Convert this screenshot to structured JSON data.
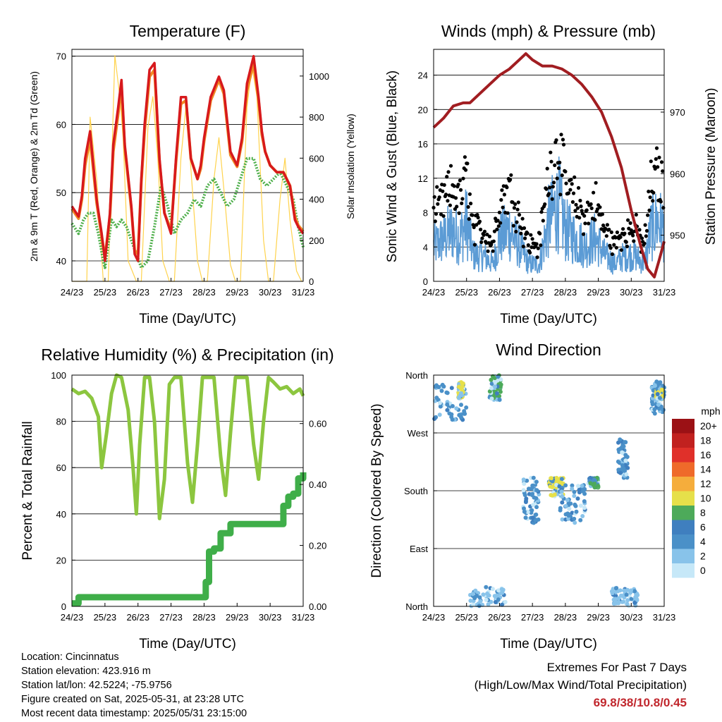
{
  "chart_data": [
    {
      "type": "line",
      "title": "Temperature (F)",
      "xlabel": "Time (Day/UTC)",
      "ylabel": "2m & 9m T (Red, Orange) & 2m Td (Green)",
      "ylabel_right": "Solar Insolation (Yellow)",
      "xticks": [
        "24/23",
        "25/23",
        "26/23",
        "27/23",
        "28/23",
        "29/23",
        "30/23",
        "31/23"
      ],
      "ylim": [
        37,
        71
      ],
      "yticks": [
        40,
        50,
        60,
        70
      ],
      "y2lim": [
        0,
        1130
      ],
      "y2ticks": [
        0,
        200,
        400,
        600,
        800,
        1000
      ],
      "grid": true,
      "colors": {
        "temp2m": "#d7191c",
        "temp9m": "#f08a24",
        "dewpoint": "#4daf4a",
        "solar": "#ffd34d"
      },
      "series": [
        {
          "key": "temp2m",
          "x": [
            0,
            0.2,
            0.3,
            0.4,
            0.55,
            0.75,
            0.9,
            1.0,
            1.15,
            1.25,
            1.4,
            1.5,
            1.6,
            1.8,
            1.9,
            2.0,
            2.1,
            2.2,
            2.35,
            2.5,
            2.65,
            2.8,
            3.0,
            3.15,
            3.3,
            3.45,
            3.6,
            3.8,
            3.9,
            4.0,
            4.2,
            4.45,
            4.6,
            4.8,
            5.0,
            5.15,
            5.3,
            5.5,
            5.65,
            5.75,
            5.85,
            6.0,
            6.2,
            6.4,
            6.6,
            6.75,
            6.85,
            6.92,
            7.0
          ],
          "y": [
            48,
            46.5,
            49.5,
            55,
            59,
            49,
            44,
            40,
            47,
            57,
            62.5,
            66.5,
            57,
            48,
            41,
            40,
            52,
            60,
            68,
            69,
            55,
            47,
            44,
            55,
            64,
            64,
            55,
            52,
            54,
            58,
            64,
            67,
            65,
            56,
            54,
            58,
            66,
            70,
            64,
            59,
            56,
            54,
            53,
            53,
            51,
            46,
            45,
            44.5,
            44
          ]
        },
        {
          "key": "temp9m",
          "x": [
            0,
            0.2,
            0.3,
            0.4,
            0.55,
            0.75,
            0.9,
            1.0,
            1.15,
            1.25,
            1.4,
            1.5,
            1.6,
            1.8,
            1.9,
            2.0,
            2.1,
            2.2,
            2.35,
            2.5,
            2.65,
            2.8,
            3.0,
            3.15,
            3.3,
            3.45,
            3.6,
            3.8,
            3.9,
            4.0,
            4.2,
            4.45,
            4.6,
            4.8,
            5.0,
            5.15,
            5.3,
            5.5,
            5.65,
            5.75,
            5.85,
            6.0,
            6.2,
            6.4,
            6.6,
            6.75,
            6.85,
            6.92,
            7.0
          ],
          "y": [
            47.6,
            46.2,
            49,
            54,
            58,
            48.5,
            43.6,
            40.5,
            46.5,
            56,
            61.5,
            65.5,
            56.5,
            47.6,
            41.5,
            41,
            51.5,
            59,
            67,
            68,
            54.5,
            47,
            44.5,
            54.5,
            63,
            63.5,
            55,
            52,
            53.5,
            57.5,
            63.5,
            66.5,
            64.5,
            55.5,
            53.8,
            57.5,
            65,
            69,
            63.5,
            58.5,
            56,
            54,
            53,
            53,
            51,
            46.5,
            45.2,
            44.8,
            44.3
          ]
        },
        {
          "key": "dewpoint",
          "x": [
            0,
            0.2,
            0.35,
            0.5,
            0.65,
            0.8,
            0.95,
            1.0,
            1.2,
            1.35,
            1.5,
            1.65,
            1.8,
            1.95,
            2.1,
            2.3,
            2.5,
            2.7,
            2.9,
            3.1,
            3.3,
            3.5,
            3.7,
            3.9,
            4.1,
            4.3,
            4.5,
            4.7,
            4.9,
            5.1,
            5.3,
            5.5,
            5.7,
            5.9,
            6.1,
            6.3,
            6.5,
            6.7,
            6.85,
            7.0
          ],
          "y": [
            45.5,
            44,
            46,
            47,
            47,
            44,
            40,
            39,
            46,
            45,
            46,
            45,
            43,
            41,
            39,
            40,
            45,
            51,
            48,
            44,
            46,
            47,
            49,
            48,
            51,
            52,
            50,
            48,
            49,
            52,
            55,
            55,
            52,
            51,
            52,
            53,
            51,
            49,
            45,
            42
          ]
        },
        {
          "key": "solar",
          "x": [
            0,
            0.45,
            0.55,
            0.75,
            0.95,
            1.1,
            1.3,
            1.45,
            1.55,
            1.7,
            1.95,
            2.1,
            2.3,
            2.45,
            2.6,
            2.75,
            2.95,
            3.1,
            3.3,
            3.45,
            3.6,
            3.8,
            3.95,
            4.1,
            4.3,
            4.45,
            4.6,
            4.8,
            4.95,
            5.1,
            5.3,
            5.45,
            5.6,
            5.8,
            5.95,
            6.1,
            6.3,
            6.45,
            6.6,
            6.8,
            6.95,
            7.0
          ],
          "y": [
            0,
            0,
            800,
            500,
            0,
            0,
            1100,
            900,
            700,
            100,
            0,
            0,
            750,
            900,
            600,
            100,
            0,
            0,
            600,
            850,
            550,
            100,
            0,
            0,
            500,
            700,
            450,
            80,
            0,
            0,
            850,
            1050,
            900,
            200,
            0,
            0,
            400,
            600,
            300,
            50,
            0,
            0
          ]
        }
      ]
    },
    {
      "type": "line",
      "title": "Winds (mph) & Pressure (mb)",
      "xlabel": "Time (Day/UTC)",
      "ylabel": "Sonic Wind & Gust (Blue, Black)",
      "ylabel_right": "Station Pressure (Maroon)",
      "xticks": [
        "24/23",
        "25/23",
        "26/23",
        "27/23",
        "28/23",
        "29/23",
        "30/23",
        "31/23"
      ],
      "ylim": [
        0,
        27
      ],
      "yticks": [
        0,
        4,
        8,
        12,
        16,
        20,
        24
      ],
      "y2lim": [
        942.5,
        980.2
      ],
      "y2ticks": [
        950,
        960,
        970
      ],
      "grid": true,
      "colors": {
        "wind": "#5b9bd5",
        "gust": "#000000",
        "pressure": "#a11d21"
      },
      "series": [
        {
          "key": "wind",
          "x": [
            0,
            0.3,
            0.6,
            0.8,
            1.0,
            1.2,
            1.5,
            1.8,
            2.0,
            2.3,
            2.6,
            2.9,
            3.2,
            3.5,
            3.8,
            4.0,
            4.3,
            4.6,
            4.9,
            5.2,
            5.5,
            5.8,
            6.1,
            6.4,
            6.6,
            6.8,
            7.0
          ],
          "y": [
            4,
            5,
            6,
            5,
            7,
            3,
            3,
            2,
            5,
            6,
            4,
            2,
            2,
            7,
            9,
            6,
            5,
            4,
            5,
            3,
            2,
            3,
            3,
            2,
            6,
            7,
            6
          ]
        },
        {
          "key": "pressure",
          "x": [
            0,
            0.3,
            0.6,
            0.9,
            1.1,
            1.4,
            1.7,
            2.0,
            2.3,
            2.6,
            2.8,
            3.0,
            3.3,
            3.6,
            3.9,
            4.2,
            4.5,
            4.8,
            5.1,
            5.4,
            5.7,
            6.0,
            6.3,
            6.5,
            6.7,
            6.85,
            7.0
          ],
          "y": [
            967.5,
            969,
            971,
            971.5,
            971.5,
            973,
            974.5,
            976,
            977,
            978.5,
            979.5,
            978.5,
            977.5,
            977.5,
            977,
            976,
            974.5,
            972.5,
            970,
            966,
            961,
            954,
            948,
            944.5,
            943.2,
            946,
            949
          ]
        }
      ]
    },
    {
      "type": "line",
      "title": "Relative Humidity (%) & Precipitation (in)",
      "xlabel": "Time (Day/UTC)",
      "ylabel": "Percent & Total Rainfall",
      "xticks": [
        "24/23",
        "25/23",
        "26/23",
        "27/23",
        "28/23",
        "29/23",
        "30/23",
        "31/23"
      ],
      "ylim": [
        0,
        100
      ],
      "yticks": [
        0,
        20,
        40,
        60,
        80,
        100
      ],
      "y2lim": [
        0,
        0.759
      ],
      "y2ticks": [
        "0.00",
        "0.20",
        "0.40",
        "0.60"
      ],
      "grid": true,
      "colors": {
        "rh": "#8cc63f",
        "precip": "#3fae49"
      },
      "series": [
        {
          "key": "rh",
          "x": [
            0,
            0.2,
            0.4,
            0.6,
            0.8,
            0.9,
            1.05,
            1.2,
            1.35,
            1.5,
            1.7,
            1.85,
            1.95,
            2.05,
            2.2,
            2.35,
            2.5,
            2.65,
            2.8,
            2.95,
            3.1,
            3.3,
            3.5,
            3.65,
            3.8,
            3.95,
            4.1,
            4.3,
            4.5,
            4.65,
            4.8,
            4.95,
            5.1,
            5.3,
            5.5,
            5.65,
            5.8,
            5.95,
            6.1,
            6.3,
            6.5,
            6.7,
            6.9,
            7.0
          ],
          "y": [
            94,
            92,
            93,
            90,
            82,
            60,
            75,
            92,
            100,
            99,
            85,
            60,
            40,
            70,
            99,
            99,
            80,
            38,
            55,
            96,
            99,
            99,
            62,
            45,
            70,
            99,
            99,
            99,
            65,
            48,
            75,
            99,
            99,
            99,
            70,
            55,
            80,
            99,
            97,
            94,
            95,
            92,
            94,
            91
          ]
        },
        {
          "key": "precip",
          "x": [
            0,
            0.1,
            0.2,
            0.5,
            1.0,
            2.0,
            3.0,
            3.8,
            4.0,
            4.05,
            4.15,
            4.3,
            4.5,
            4.8,
            5.5,
            6.3,
            6.4,
            6.55,
            6.7,
            6.85,
            7.0
          ],
          "y": [
            0.01,
            0.01,
            0.03,
            0.03,
            0.03,
            0.03,
            0.03,
            0.03,
            0.03,
            0.08,
            0.18,
            0.19,
            0.24,
            0.27,
            0.27,
            0.27,
            0.33,
            0.36,
            0.37,
            0.42,
            0.44
          ]
        }
      ]
    },
    {
      "type": "scatter",
      "title": "Wind Direction",
      "xlabel": "Time (Day/UTC)",
      "ylabel": "Direction (Colored By Speed)",
      "xticks": [
        "24/23",
        "25/23",
        "26/23",
        "27/23",
        "28/23",
        "29/23",
        "30/23",
        "31/23"
      ],
      "yticks": [
        "North",
        "East",
        "South",
        "West",
        "North"
      ],
      "grid": true,
      "legend": {
        "title": "mph",
        "labels": [
          "0",
          "2",
          "4",
          "6",
          "8",
          "10",
          "12",
          "14",
          "16",
          "18",
          "20+"
        ],
        "colors": [
          "#c6e8f8",
          "#88c3ea",
          "#4a90c8",
          "#3f7fbf",
          "#4daa5a",
          "#e6e04a",
          "#f5ad3c",
          "#ef6a2a",
          "#e0302a",
          "#c1211f",
          "#9b1115"
        ]
      },
      "clusters": [
        {
          "x": [
            0.0,
            1.0
          ],
          "dir": [
            290,
            345
          ],
          "color": "#4a90c8"
        },
        {
          "x": [
            0.75,
            0.9
          ],
          "dir": [
            325,
            350
          ],
          "color": "#e6e04a"
        },
        {
          "x": [
            1.7,
            2.05
          ],
          "dir": [
            320,
            360
          ],
          "color": "#4daa5a"
        },
        {
          "x": [
            1.1,
            2.2
          ],
          "dir": [
            0,
            30
          ],
          "color": "#88c3ea"
        },
        {
          "x": [
            2.7,
            3.2
          ],
          "dir": [
            130,
            200
          ],
          "color": "#4a90c8"
        },
        {
          "x": [
            3.5,
            3.95
          ],
          "dir": [
            170,
            200
          ],
          "color": "#e6e04a"
        },
        {
          "x": [
            3.8,
            4.6
          ],
          "dir": [
            130,
            190
          ],
          "color": "#4a90c8"
        },
        {
          "x": [
            4.7,
            5.0
          ],
          "dir": [
            185,
            200
          ],
          "color": "#4daa5a"
        },
        {
          "x": [
            5.6,
            5.9
          ],
          "dir": [
            200,
            260
          ],
          "color": "#4a90c8"
        },
        {
          "x": [
            5.4,
            6.2
          ],
          "dir": [
            0,
            30
          ],
          "color": "#88c3ea"
        },
        {
          "x": [
            6.6,
            7.0
          ],
          "dir": [
            300,
            350
          ],
          "color": "#4a90c8"
        },
        {
          "x": [
            6.75,
            6.95
          ],
          "dir": [
            320,
            340
          ],
          "color": "#e6e04a"
        }
      ]
    }
  ],
  "info": {
    "location": "Location: Cincinnatus",
    "elevation": "Station elevation: 423.916 m",
    "latlon": "Station lat/lon: 42.5224; -75.9756",
    "created": "Figure created on Sat, 2025-05-31, at 23:28 UTC",
    "latest": "Most recent data timestamp: 2025/05/31 23:15:00"
  },
  "extremes": {
    "title": "Extremes For Past 7 Days",
    "subtitle": "(High/Low/Max Wind/Total Precipitation)",
    "values": "69.8/38/10.8/0.45"
  }
}
